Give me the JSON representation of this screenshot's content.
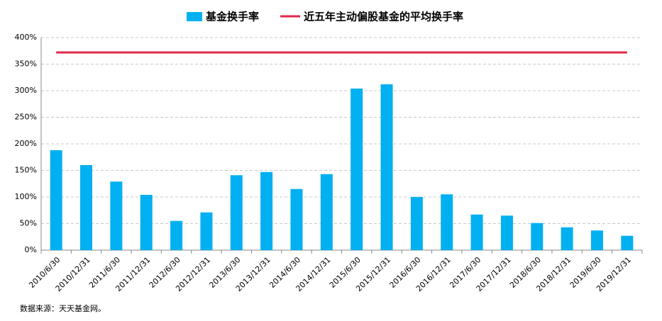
{
  "chart_data": {
    "type": "bar",
    "categories": [
      "2010/6/30",
      "2010/12/31",
      "2011/6/30",
      "2011/12/31",
      "2012/6/30",
      "2012/12/31",
      "2013/6/30",
      "2013/12/31",
      "2014/6/30",
      "2014/12/31",
      "2015/6/30",
      "2015/12/31",
      "2016/6/30",
      "2016/12/31",
      "2017/6/30",
      "2017/12/31",
      "2018/6/30",
      "2018/12/31",
      "2019/6/30",
      "2019/12/31"
    ],
    "series": [
      {
        "name": "基金换手率",
        "type": "bar",
        "color": "#00b0f0",
        "values": [
          188,
          160,
          129,
          104,
          55,
          71,
          141,
          147,
          115,
          143,
          304,
          312,
          100,
          105,
          67,
          65,
          51,
          43,
          37,
          27
        ]
      },
      {
        "name": "近五年主动偏股基金的平均换手率",
        "type": "line",
        "color": "#e0294b",
        "values": [
          372,
          372,
          372,
          372,
          372,
          372,
          372,
          372,
          372,
          372,
          372,
          372,
          372,
          372,
          372,
          372,
          372,
          372,
          372,
          372
        ]
      }
    ],
    "ylim": [
      0,
      400
    ],
    "yticks": [
      {
        "value": 0,
        "label": "0%"
      },
      {
        "value": 50,
        "label": "50%"
      },
      {
        "value": 100,
        "label": "100%"
      },
      {
        "value": 150,
        "label": "150%"
      },
      {
        "value": 200,
        "label": "200%"
      },
      {
        "value": 250,
        "label": "250%"
      },
      {
        "value": 300,
        "label": "300%"
      },
      {
        "value": 350,
        "label": "350%"
      },
      {
        "value": 400,
        "label": "400%"
      }
    ],
    "grid": true,
    "legend": "top",
    "note": "数据来源：天天基金网。"
  }
}
